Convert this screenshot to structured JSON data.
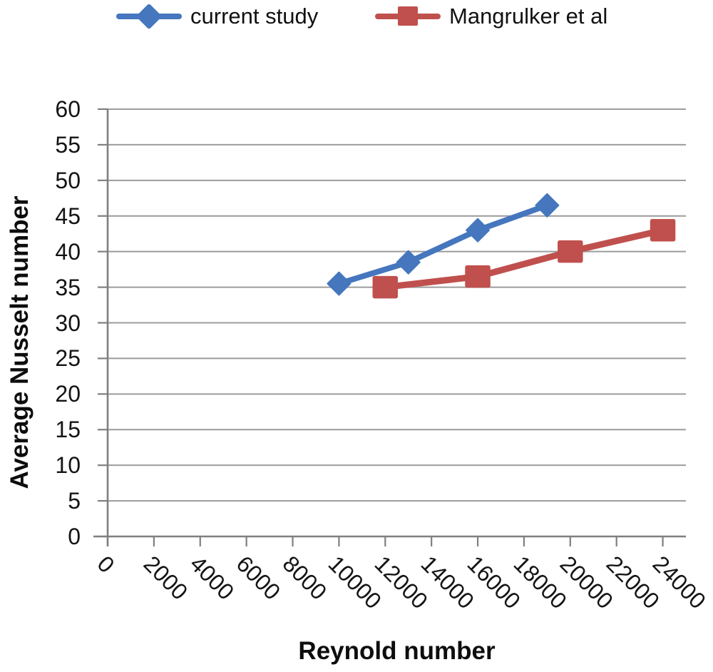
{
  "legend": {
    "items": [
      {
        "label": "current study",
        "color": "#4576BE",
        "marker": "diamond"
      },
      {
        "label": "Mangrulker et al",
        "color": "#C0504D",
        "marker": "square"
      }
    ]
  },
  "chart_data": {
    "type": "line",
    "title": "",
    "xlabel": "Reynold number",
    "ylabel": "Average Nusselt number",
    "xlim": [
      0,
      25000
    ],
    "ylim": [
      0,
      60
    ],
    "x_ticks": [
      0,
      2000,
      4000,
      6000,
      8000,
      10000,
      12000,
      14000,
      16000,
      18000,
      20000,
      22000,
      24000
    ],
    "y_ticks": [
      0,
      5,
      10,
      15,
      20,
      25,
      30,
      35,
      40,
      45,
      50,
      55,
      60
    ],
    "x_tick_rotation_deg": 45,
    "grid": "horizontal-only",
    "legend_position": "top-center",
    "series": [
      {
        "name": "current study",
        "color": "#4576BE",
        "marker": "diamond",
        "line_width": 8,
        "points": [
          [
            10000,
            35.5
          ],
          [
            13000,
            38.5
          ],
          [
            16000,
            43
          ],
          [
            19000,
            46.5
          ]
        ]
      },
      {
        "name": "Mangrulker et al",
        "color": "#C0504D",
        "marker": "square",
        "line_width": 9,
        "points": [
          [
            12000,
            35
          ],
          [
            16000,
            36.5
          ],
          [
            20000,
            40
          ],
          [
            24000,
            43
          ]
        ]
      }
    ],
    "colors": {
      "gridline": "#9C9C9C",
      "axis": "#7F7F7F",
      "tick_text": "#141414"
    }
  }
}
